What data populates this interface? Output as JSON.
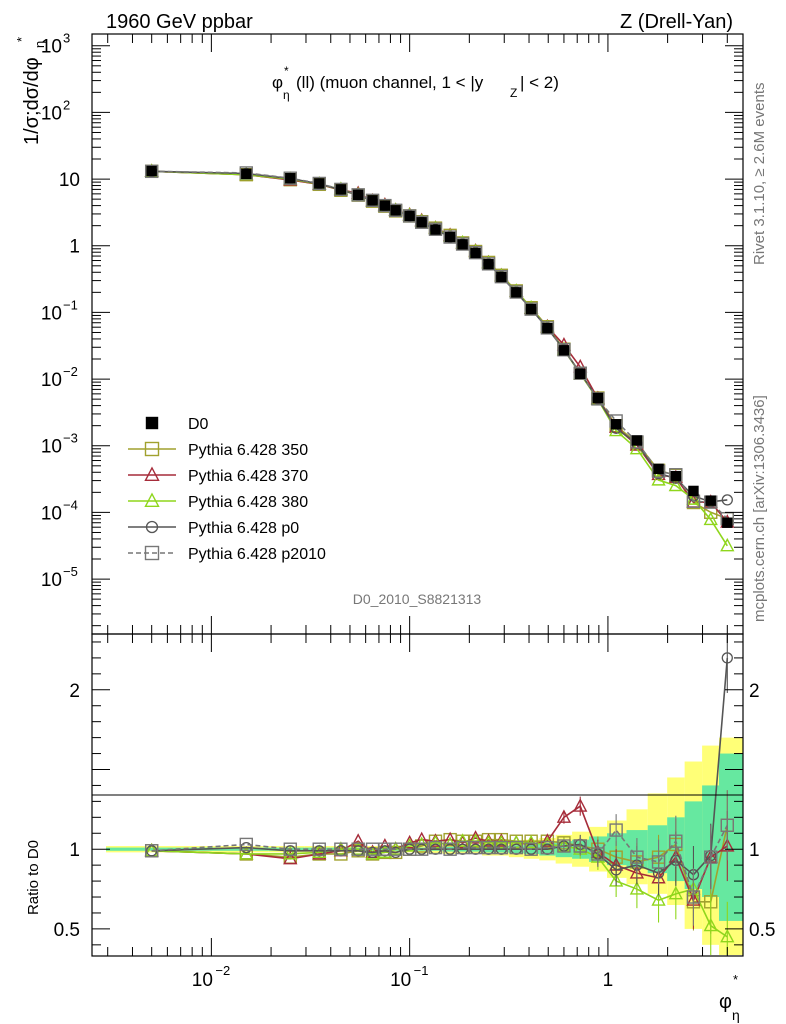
{
  "header": {
    "left": "1960 GeV ppbar",
    "right": "Z (Drell-Yan)"
  },
  "side_labels": {
    "rivet": "Rivet 3.1.10, ≥ 2.6M events",
    "mcplots": "mcplots.cern.ch [arXiv:1306.3436]"
  },
  "plot_title": {
    "phi": "φ",
    "star": "*",
    "eta": "η",
    "rest": "(ll) (muon channel, 1 < |y",
    "z": "Z",
    "end": "| < 2)"
  },
  "analysis_id": "D0_2010_S8821313",
  "axes": {
    "ylabel_main": "1/σ;dσ/dφ",
    "ylabel_main_sub": "η",
    "ylabel_main_sup": "*",
    "ylabel_ratio": "Ratio to D0",
    "xlabel": "φ",
    "xlabel_sub": "η",
    "xlabel_sup": "*"
  },
  "ticks": {
    "x_labels": [
      {
        "value": 0.01,
        "base": "10",
        "exp": "−2"
      },
      {
        "value": 0.1,
        "base": "10",
        "exp": "−1"
      },
      {
        "value": 1,
        "base": "1",
        "exp": ""
      }
    ],
    "y_labels": [
      {
        "exp": 3,
        "base": "10",
        "sup": "3"
      },
      {
        "exp": 2,
        "base": "10",
        "sup": "2"
      },
      {
        "exp": 1,
        "base": "10",
        "sup": ""
      },
      {
        "exp": 0,
        "base": "1",
        "sup": ""
      },
      {
        "exp": -1,
        "base": "10",
        "sup": "−1"
      },
      {
        "exp": -2,
        "base": "10",
        "sup": "−2"
      },
      {
        "exp": -3,
        "base": "10",
        "sup": "−3"
      },
      {
        "exp": -4,
        "base": "10",
        "sup": "−4"
      },
      {
        "exp": -5,
        "base": "10",
        "sup": "−5"
      }
    ],
    "ratio_labels": [
      {
        "value": 2,
        "text": "2"
      },
      {
        "value": 1,
        "text": "1"
      },
      {
        "value": 0.5,
        "text": "0.5"
      }
    ]
  },
  "legend": [
    {
      "label": "D0",
      "color": "#000000",
      "marker": "filled-square",
      "dashed": false
    },
    {
      "label": "Pythia 6.428 350",
      "color": "#a1a12e",
      "marker": "open-square",
      "dashed": false
    },
    {
      "label": "Pythia 6.428 370",
      "color": "#a62c3a",
      "marker": "open-triangle",
      "dashed": false
    },
    {
      "label": "Pythia 6.428 380",
      "color": "#8fd61c",
      "marker": "open-triangle",
      "dashed": false
    },
    {
      "label": "Pythia 6.428 p0",
      "color": "#555555",
      "marker": "open-circle",
      "dashed": false
    },
    {
      "label": "Pythia 6.428 p2010",
      "color": "#777777",
      "marker": "open-square",
      "dashed": true
    }
  ],
  "chart_data": {
    "type": "scatter",
    "x_scale": "log",
    "y_scale": "log",
    "xlim": [
      0.0025,
      4.8
    ],
    "ylim": [
      1.5e-06,
      1500
    ],
    "ratio_ylim": [
      0.33,
      2.35
    ],
    "x": [
      0.005,
      0.015,
      0.025,
      0.035,
      0.045,
      0.055,
      0.065,
      0.075,
      0.085,
      0.1,
      0.115,
      0.135,
      0.16,
      0.185,
      0.215,
      0.25,
      0.29,
      0.345,
      0.41,
      0.495,
      0.6,
      0.725,
      0.89,
      1.1,
      1.4,
      1.8,
      2.2,
      2.7,
      3.3,
      4.0
    ],
    "data_values": [
      13.2,
      12.0,
      10.3,
      8.6,
      7.0,
      5.8,
      4.8,
      4.0,
      3.4,
      2.8,
      2.25,
      1.75,
      1.35,
      1.05,
      0.78,
      0.53,
      0.34,
      0.2,
      0.112,
      0.058,
      0.027,
      0.012,
      0.0052,
      0.0021,
      0.0012,
      0.00045,
      0.00035,
      0.00021,
      0.00015,
      7e-05
    ],
    "band_inner": [
      [
        0.99,
        1.01
      ],
      [
        0.99,
        1.01
      ],
      [
        0.99,
        1.01
      ],
      [
        0.99,
        1.01
      ],
      [
        0.99,
        1.01
      ],
      [
        0.99,
        1.01
      ],
      [
        0.99,
        1.01
      ],
      [
        0.99,
        1.01
      ],
      [
        0.99,
        1.01
      ],
      [
        0.99,
        1.01
      ],
      [
        0.99,
        1.01
      ],
      [
        0.99,
        1.01
      ],
      [
        0.985,
        1.015
      ],
      [
        0.985,
        1.015
      ],
      [
        0.985,
        1.015
      ],
      [
        0.98,
        1.02
      ],
      [
        0.98,
        1.02
      ],
      [
        0.975,
        1.025
      ],
      [
        0.97,
        1.03
      ],
      [
        0.96,
        1.04
      ],
      [
        0.95,
        1.05
      ],
      [
        0.94,
        1.06
      ],
      [
        0.92,
        1.08
      ],
      [
        0.9,
        1.1
      ],
      [
        0.88,
        1.12
      ],
      [
        0.85,
        1.15
      ],
      [
        0.8,
        1.2
      ],
      [
        0.75,
        1.3
      ],
      [
        0.7,
        1.4
      ],
      [
        0.55,
        1.6
      ]
    ],
    "band_outer": [
      [
        0.98,
        1.02
      ],
      [
        0.98,
        1.02
      ],
      [
        0.98,
        1.02
      ],
      [
        0.98,
        1.02
      ],
      [
        0.98,
        1.02
      ],
      [
        0.98,
        1.02
      ],
      [
        0.98,
        1.02
      ],
      [
        0.98,
        1.02
      ],
      [
        0.98,
        1.02
      ],
      [
        0.98,
        1.02
      ],
      [
        0.975,
        1.025
      ],
      [
        0.975,
        1.025
      ],
      [
        0.97,
        1.03
      ],
      [
        0.97,
        1.03
      ],
      [
        0.97,
        1.03
      ],
      [
        0.96,
        1.04
      ],
      [
        0.96,
        1.04
      ],
      [
        0.95,
        1.05
      ],
      [
        0.94,
        1.06
      ],
      [
        0.93,
        1.07
      ],
      [
        0.91,
        1.09
      ],
      [
        0.89,
        1.11
      ],
      [
        0.86,
        1.14
      ],
      [
        0.82,
        1.18
      ],
      [
        0.78,
        1.25
      ],
      [
        0.72,
        1.35
      ],
      [
        0.65,
        1.45
      ],
      [
        0.5,
        1.55
      ],
      [
        0.4,
        1.65
      ],
      [
        0.33,
        1.7
      ]
    ],
    "series": [
      {
        "name": "Pythia 6.428 350",
        "color": "#a1a12e",
        "marker": "square",
        "ratio": [
          0.99,
          0.97,
          0.95,
          0.97,
          0.97,
          0.99,
          0.97,
          0.98,
          0.98,
          1.0,
          1.02,
          1.05,
          1.06,
          1.05,
          1.05,
          1.06,
          1.06,
          1.05,
          1.05,
          1.05,
          1.04,
          1.02,
          1.0,
          0.95,
          0.92,
          0.95,
          1.03,
          0.67,
          0.67,
          1.15
        ]
      },
      {
        "name": "Pythia 6.428 370",
        "color": "#a62c3a",
        "marker": "triangle",
        "ratio": [
          0.99,
          0.97,
          0.94,
          0.97,
          0.99,
          1.05,
          0.98,
          1.02,
          1.0,
          1.04,
          1.06,
          1.05,
          1.06,
          1.04,
          1.07,
          1.05,
          1.05,
          1.04,
          1.03,
          1.05,
          1.2,
          1.27,
          0.98,
          0.9,
          0.85,
          0.82,
          0.95,
          0.68,
          0.95,
          1.02
        ]
      },
      {
        "name": "Pythia 6.428 380",
        "color": "#8fd61c",
        "marker": "triangle",
        "ratio": [
          0.99,
          0.97,
          0.97,
          0.98,
          1.0,
          1.0,
          0.97,
          0.98,
          1.0,
          1.02,
          1.03,
          1.04,
          1.03,
          1.05,
          1.05,
          1.04,
          1.04,
          1.04,
          1.04,
          1.03,
          1.02,
          1.0,
          0.95,
          0.8,
          0.75,
          0.68,
          0.72,
          0.75,
          0.52,
          0.45
        ]
      },
      {
        "name": "Pythia 6.428 p0",
        "color": "#555555",
        "marker": "circle",
        "ratio": [
          0.99,
          1.01,
          0.99,
          0.99,
          0.99,
          0.99,
          0.98,
          0.99,
          0.98,
          1.0,
          1.0,
          1.0,
          1.0,
          1.0,
          1.0,
          1.0,
          1.0,
          1.0,
          1.0,
          1.0,
          1.02,
          1.03,
          0.97,
          0.87,
          0.9,
          0.85,
          0.93,
          0.84,
          0.96,
          2.2
        ]
      },
      {
        "name": "Pythia 6.428 p2010",
        "color": "#777777",
        "marker": "square",
        "dashed": true,
        "ratio": [
          0.99,
          1.03,
          1.0,
          1.0,
          1.0,
          1.0,
          1.0,
          1.0,
          1.0,
          1.0,
          1.0,
          1.01,
          1.0,
          1.01,
          1.01,
          1.01,
          1.01,
          1.01,
          1.0,
          1.01,
          1.02,
          1.02,
          0.97,
          1.12,
          0.95,
          0.92,
          1.05,
          0.7,
          0.95,
          1.15
        ]
      }
    ]
  }
}
